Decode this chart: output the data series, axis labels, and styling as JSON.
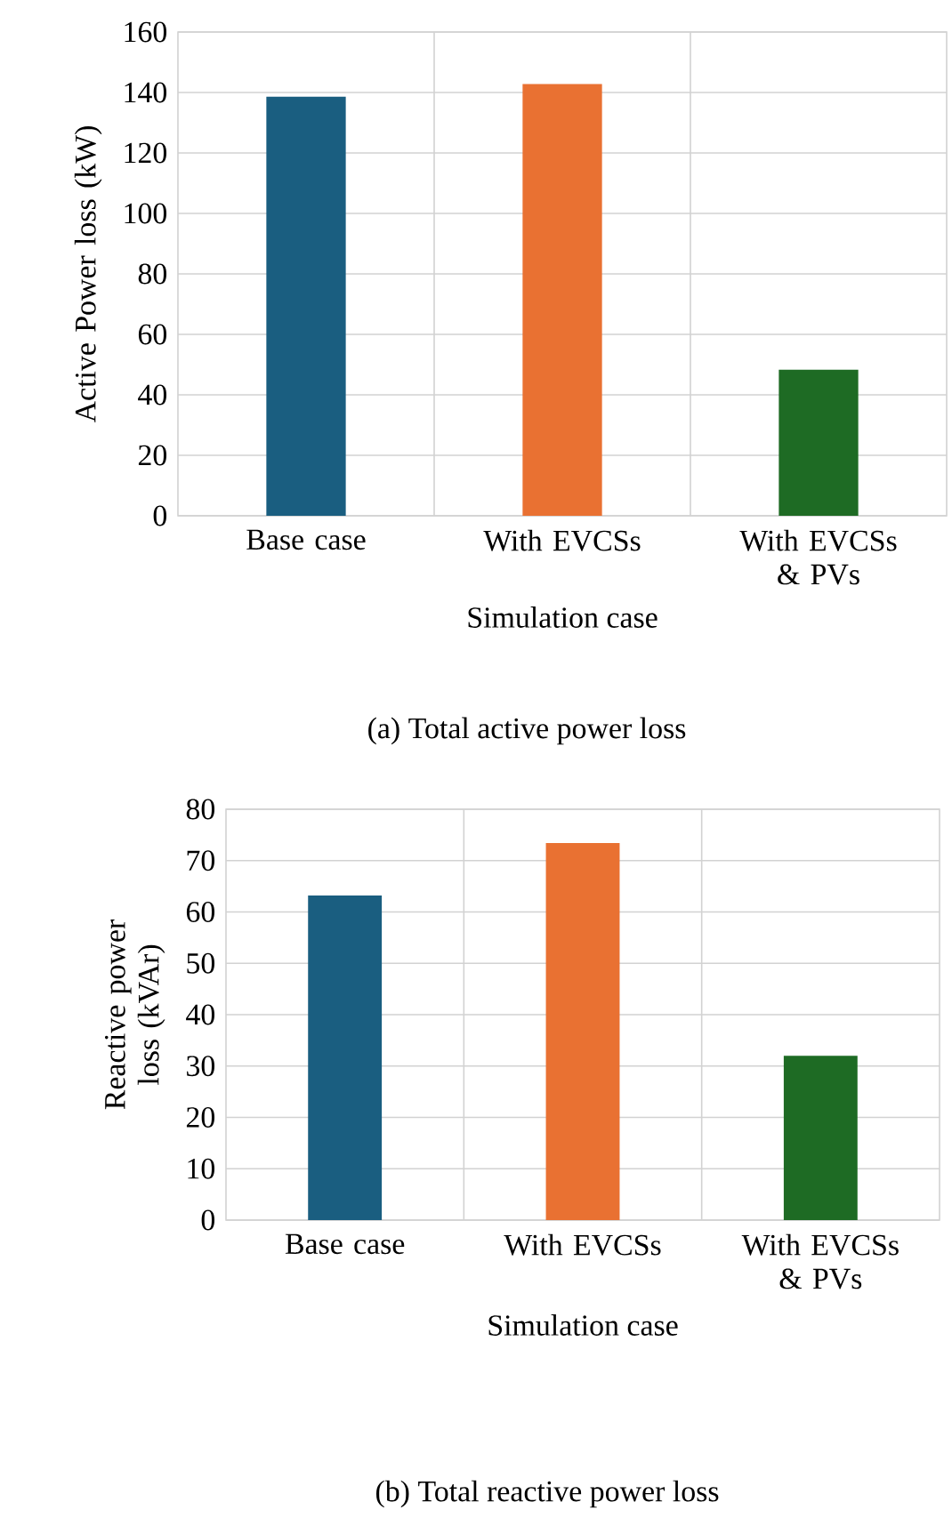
{
  "chart_data": [
    {
      "type": "bar",
      "categories": [
        "Base case",
        "With EVCSs",
        "With EVCSs & PVs"
      ],
      "values": [
        138.6,
        142.8,
        48.3
      ],
      "colors": [
        "#1a5e80",
        "#e97132",
        "#1e6b24"
      ],
      "xlabel": "Simulation case",
      "ylabel": "Active Power loss (kW)",
      "ylim": [
        0,
        160
      ],
      "yticks": [
        0,
        20,
        40,
        60,
        80,
        100,
        120,
        140,
        160
      ],
      "grid": true,
      "annotations": [
        "(a) Total active power loss"
      ]
    },
    {
      "type": "bar",
      "categories": [
        "Base case",
        "With EVCSs",
        "With EVCSs & PVs"
      ],
      "values": [
        63.2,
        73.4,
        32.0
      ],
      "colors": [
        "#1a5e80",
        "#e97132",
        "#1e6b24"
      ],
      "xlabel": "Simulation case",
      "ylabel": "Reactive power loss (kVAr)",
      "ylim": [
        0,
        80
      ],
      "yticks": [
        0,
        10,
        20,
        30,
        40,
        50,
        60,
        70,
        80
      ],
      "grid": true,
      "annotations": [
        "(b) Total reactive power loss"
      ]
    }
  ]
}
